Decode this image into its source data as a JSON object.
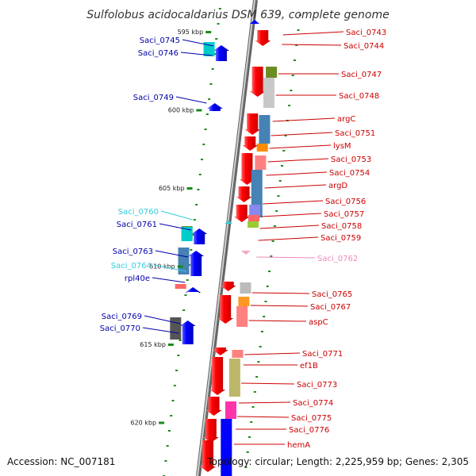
{
  "title": "Sulfolobus acidocaldarius DSM 639, complete genome",
  "accession": "Accession: NC_007181",
  "summary": "Topology: circular; Length: 2,225,959 bp; Genes: 2,305",
  "ticks": [
    {
      "label": "595 kbp",
      "pos": 595
    },
    {
      "label": "600 kbp",
      "pos": 600
    },
    {
      "label": "605 kbp",
      "pos": 605
    },
    {
      "label": "610 kbp",
      "pos": 610
    },
    {
      "label": "615 kbp",
      "pos": 615
    },
    {
      "label": "620 kbp",
      "pos": 620
    }
  ],
  "colors": {
    "cds_forward": "#ff0000",
    "cds_reverse": "#0000ff",
    "label_forward": "#cc0000",
    "label_reverse": "#0000aa",
    "label_rna": "#33ccdd",
    "label_pseudo": "#ee88bb",
    "backbone": "#888888",
    "gc_ticks": "#1a8a1a"
  },
  "genes_forward": [
    {
      "name": "Saci_0743",
      "color": "label_forward"
    },
    {
      "name": "Saci_0744",
      "color": "label_forward"
    },
    {
      "name": "Saci_0747",
      "color": "label_forward"
    },
    {
      "name": "Saci_0748",
      "color": "label_forward"
    },
    {
      "name": "argC",
      "color": "label_forward"
    },
    {
      "name": "Saci_0751",
      "color": "label_forward"
    },
    {
      "name": "lysM",
      "color": "label_forward"
    },
    {
      "name": "Saci_0753",
      "color": "label_forward"
    },
    {
      "name": "Saci_0754",
      "color": "label_forward"
    },
    {
      "name": "argD",
      "color": "label_forward"
    },
    {
      "name": "Saci_0756",
      "color": "label_forward"
    },
    {
      "name": "Saci_0757",
      "color": "label_forward"
    },
    {
      "name": "Saci_0758",
      "color": "label_forward"
    },
    {
      "name": "Saci_0759",
      "color": "label_forward"
    },
    {
      "name": "Saci_0762",
      "color": "label_pseudo"
    },
    {
      "name": "Saci_0765",
      "color": "label_forward"
    },
    {
      "name": "Saci_0767",
      "color": "label_forward"
    },
    {
      "name": "aspC",
      "color": "label_forward"
    },
    {
      "name": "Saci_0771",
      "color": "label_forward"
    },
    {
      "name": "ef1B",
      "color": "label_forward"
    },
    {
      "name": "Saci_0773",
      "color": "label_forward"
    },
    {
      "name": "Saci_0774",
      "color": "label_forward"
    },
    {
      "name": "Saci_0775",
      "color": "label_forward"
    },
    {
      "name": "Saci_0776",
      "color": "label_forward"
    },
    {
      "name": "hemA",
      "color": "label_forward"
    }
  ],
  "genes_reverse": [
    {
      "name": "Saci_0745",
      "color": "label_reverse"
    },
    {
      "name": "Saci_0746",
      "color": "label_reverse"
    },
    {
      "name": "Saci_0749",
      "color": "label_reverse"
    },
    {
      "name": "Saci_0760",
      "color": "label_rna"
    },
    {
      "name": "Saci_0761",
      "color": "label_reverse"
    },
    {
      "name": "Saci_0763",
      "color": "label_reverse"
    },
    {
      "name": "Saci_0764",
      "color": "label_rna"
    },
    {
      "name": "rpl40e",
      "color": "label_reverse"
    },
    {
      "name": "Saci_0769",
      "color": "label_reverse"
    },
    {
      "name": "Saci_0770",
      "color": "label_reverse"
    }
  ]
}
